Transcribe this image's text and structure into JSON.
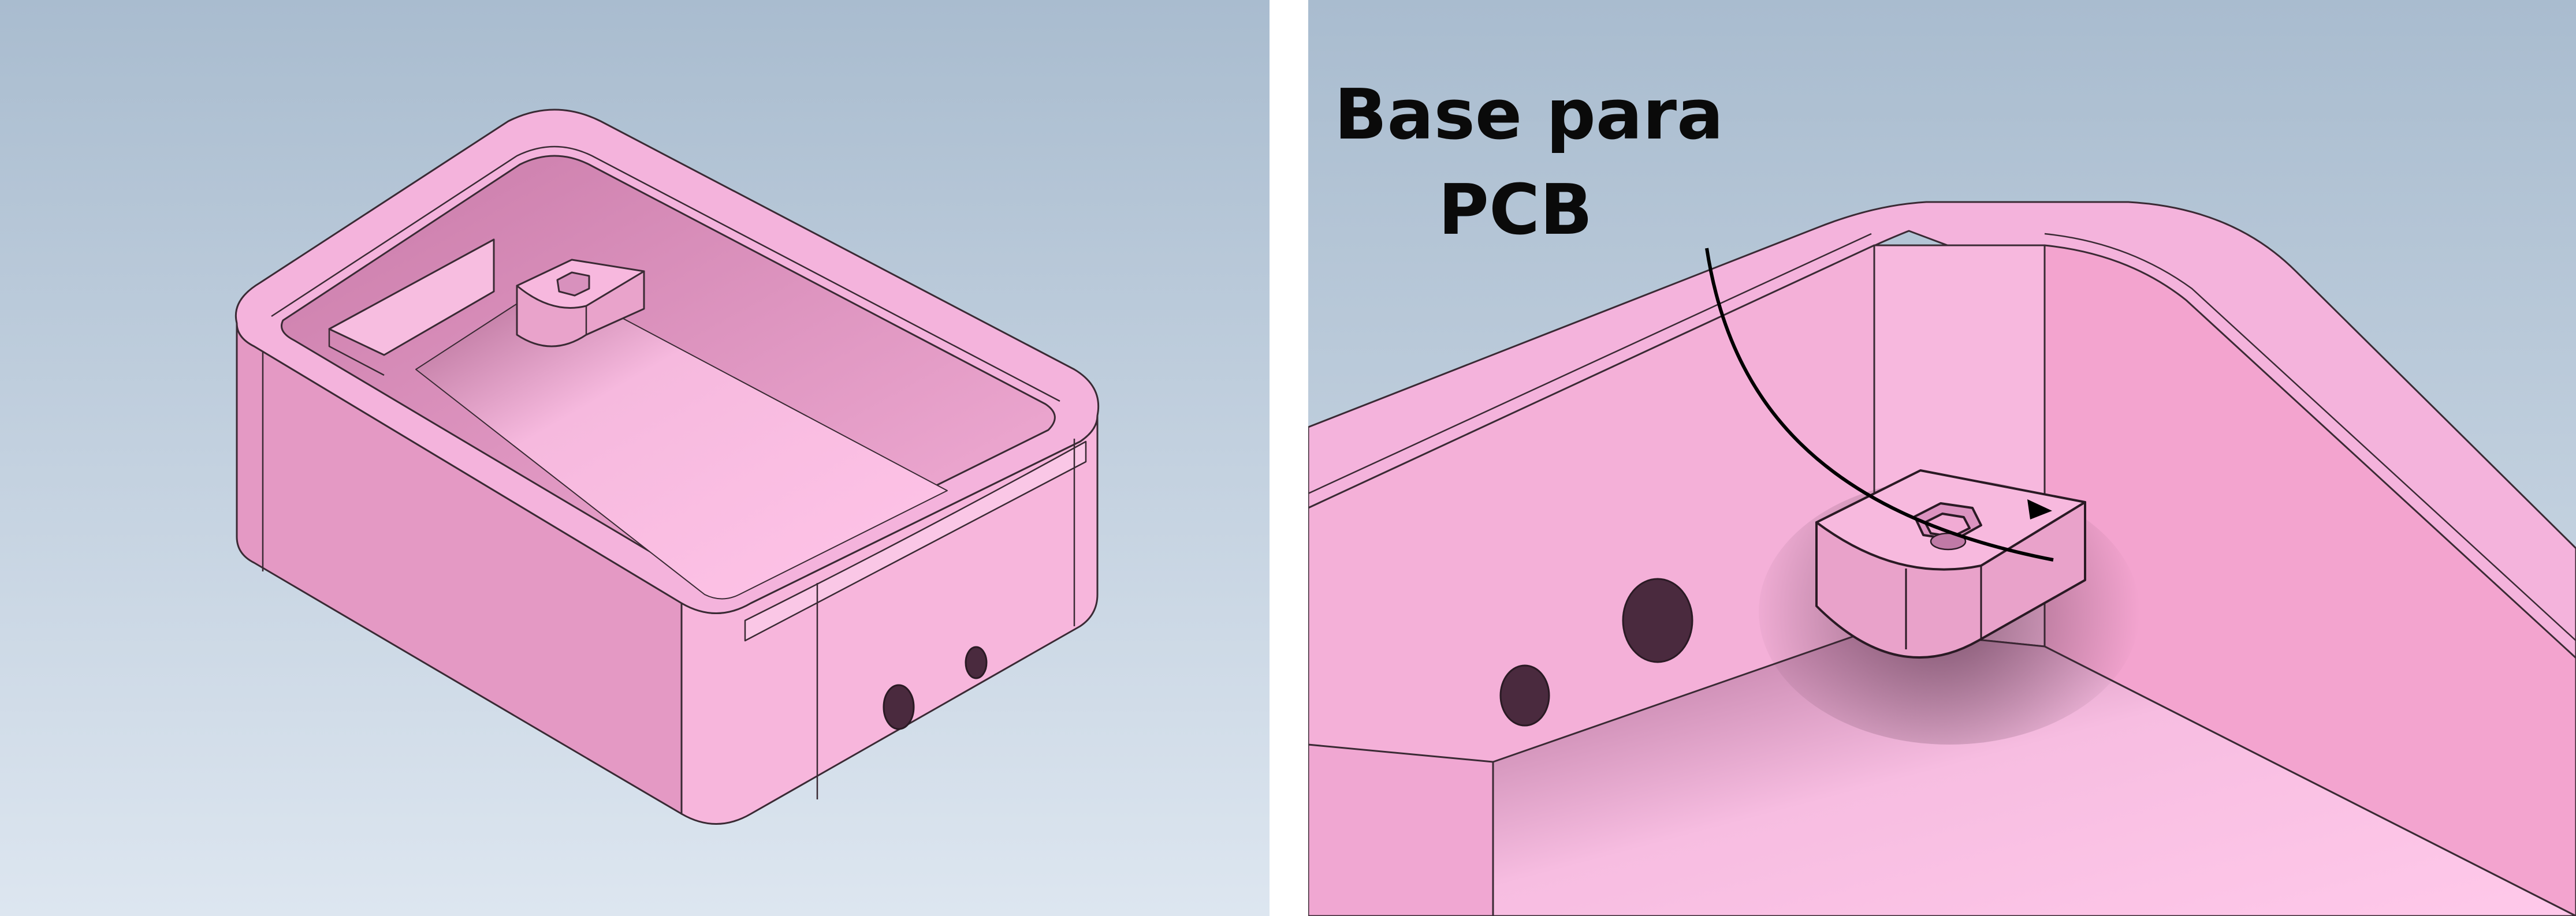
{
  "callout": {
    "line1": "Base para",
    "line2": "PCB"
  },
  "colors": {
    "background_top": "#a9bccf",
    "background_bottom": "#dde6f0",
    "part": "#f4b3dc",
    "part_shadow": "#e499c4",
    "outline": "#3a2a34",
    "callout_text": "#0a0a0a",
    "divider": "#ffffff"
  }
}
